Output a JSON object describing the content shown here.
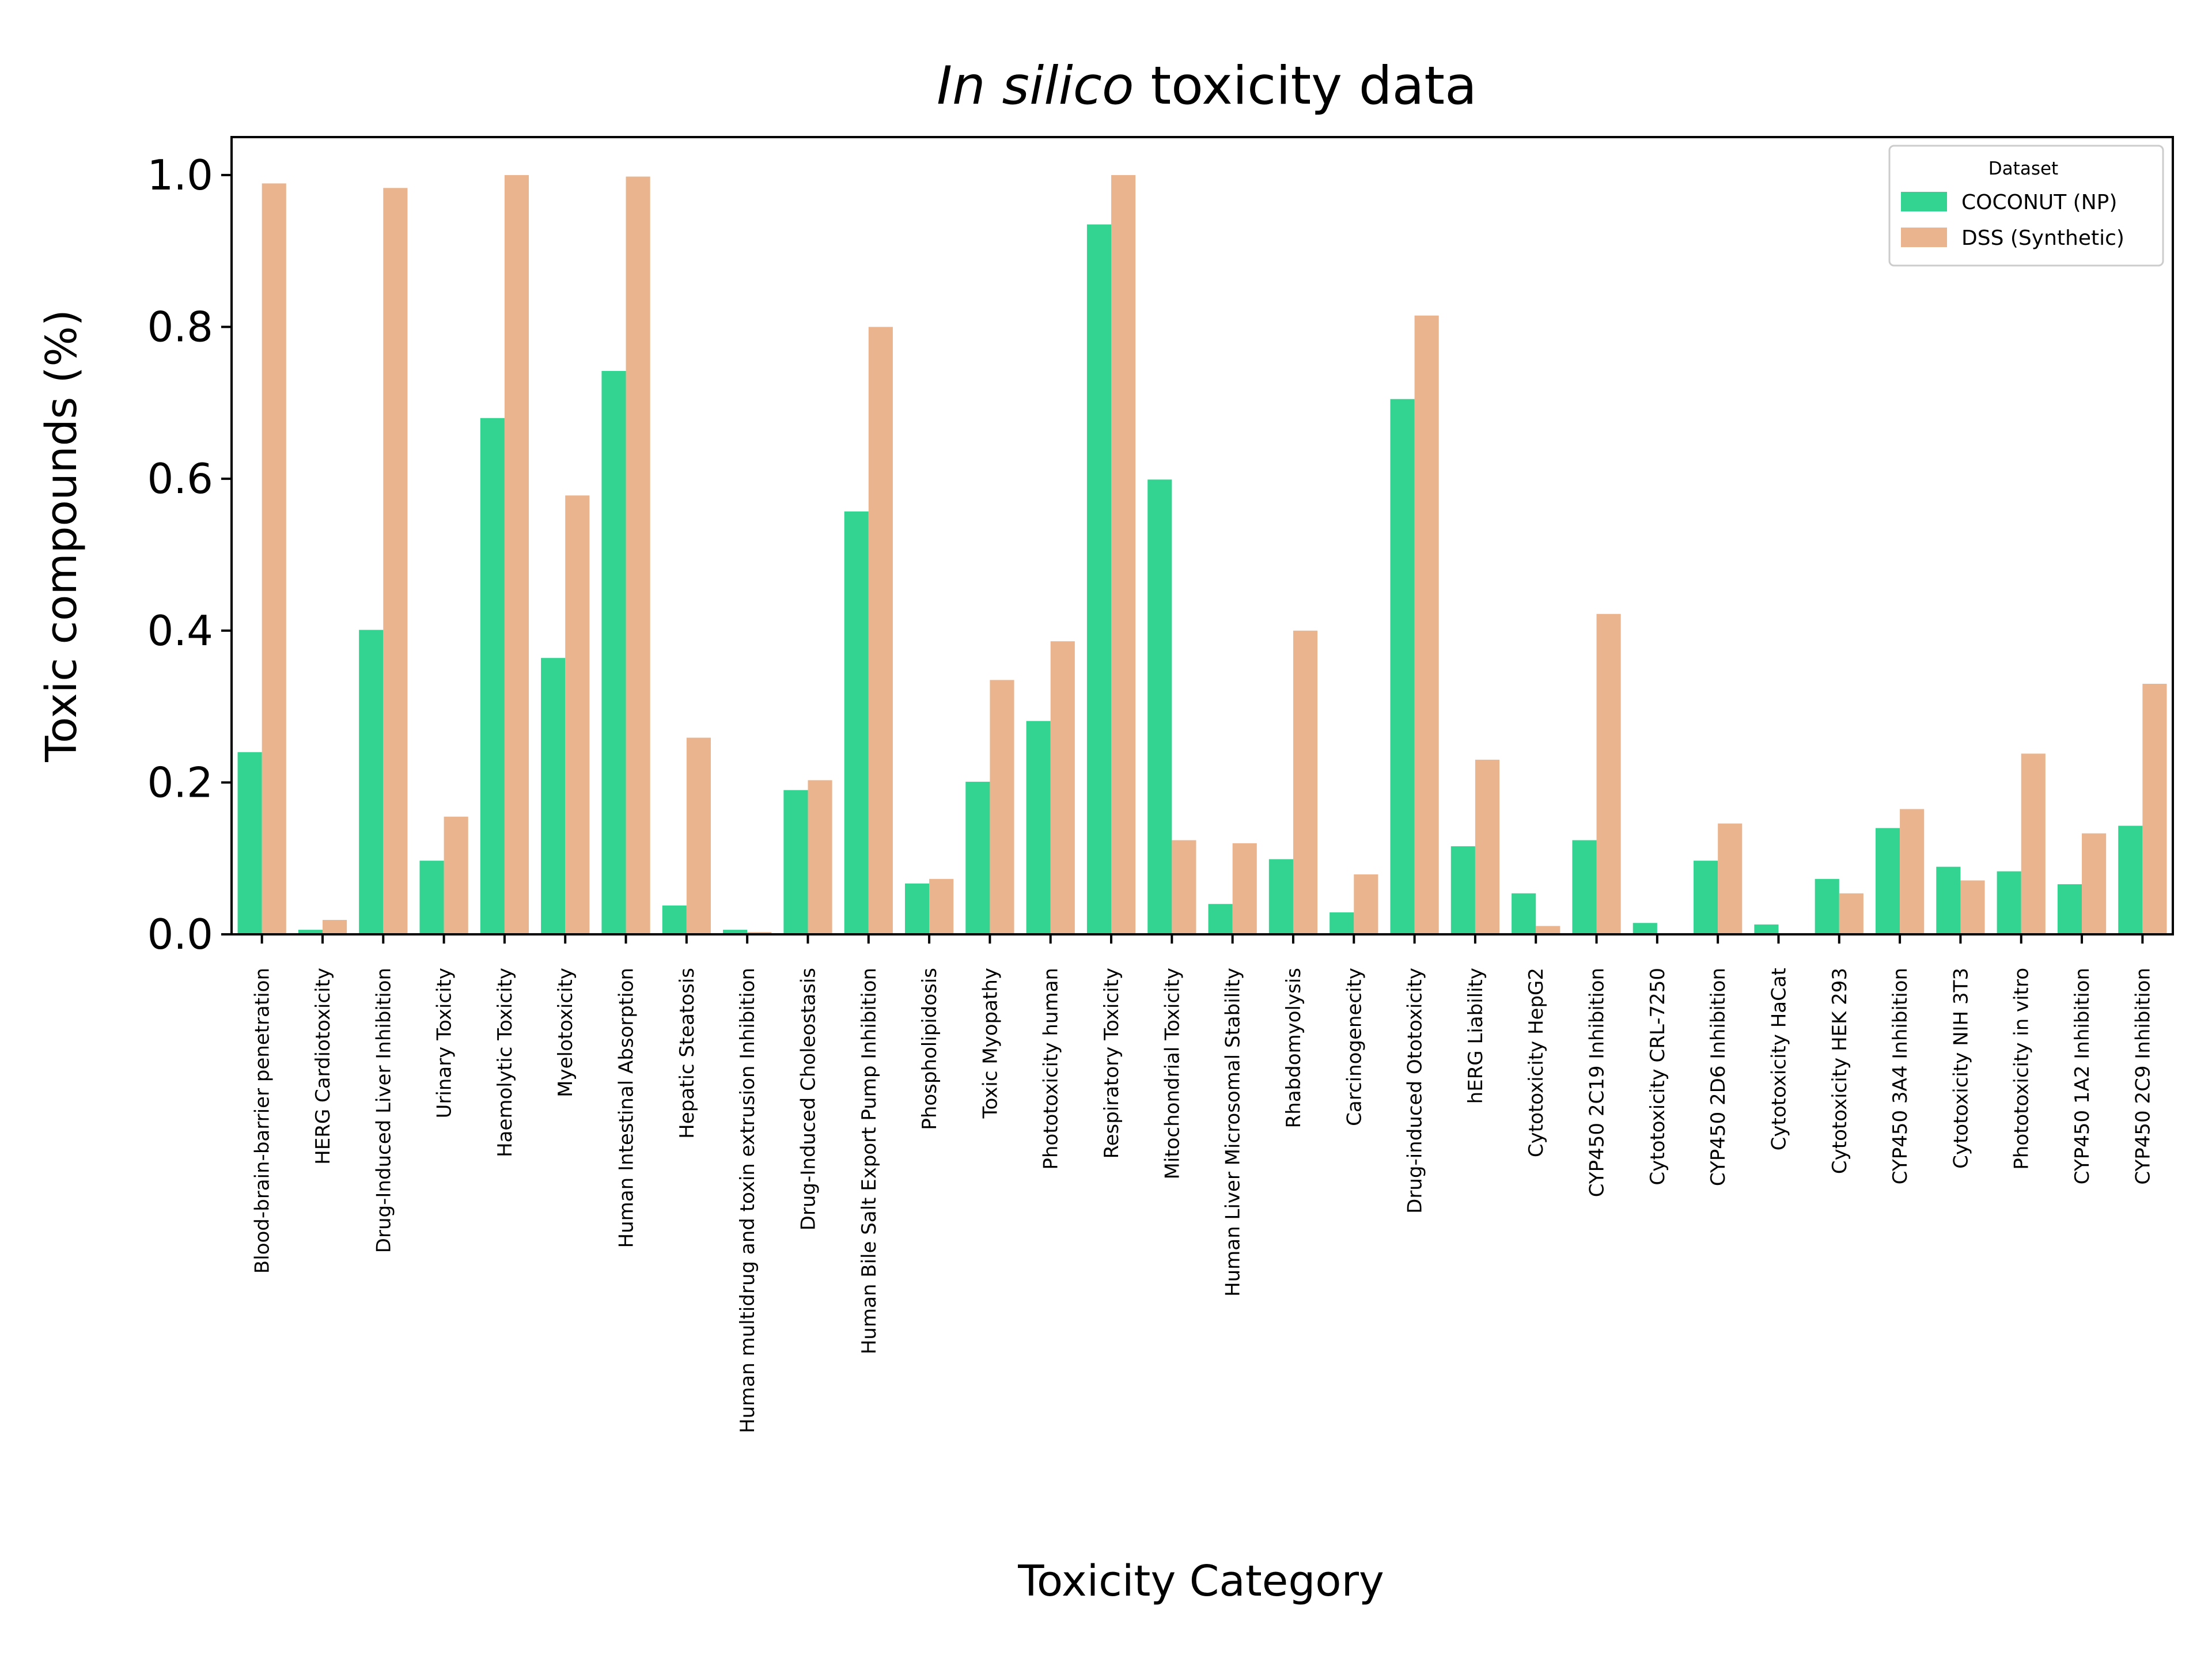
{
  "chart_data": {
    "type": "bar",
    "title": {
      "italic": "In silico",
      "rest": " toxicity data"
    },
    "xlabel": "Toxicity Category",
    "ylabel": "Toxic compounds (%)",
    "ylim": [
      0,
      1.05
    ],
    "yticks": [
      0.0,
      0.2,
      0.4,
      0.6,
      0.8,
      1.0
    ],
    "ytick_labels": [
      "0.0",
      "0.2",
      "0.4",
      "0.6",
      "0.8",
      "1.0"
    ],
    "grid": false,
    "legend": {
      "title": "Dataset",
      "placement": "top-right"
    },
    "categories": [
      "Blood-brain-barrier penetration",
      "HERG Cardiotoxicity",
      "Drug-Induced Liver Inhibition",
      "Urinary Toxicity",
      "Haemolytic Toxicity",
      "Myelotoxicity",
      "Human Intestinal Absorption",
      "Hepatic Steatosis",
      "Human multidrug and toxin extrusion Inhibition",
      "Drug-Induced Choleostasis",
      "Human Bile Salt Export Pump Inhibition",
      "Phospholipidosis",
      "Toxic Myopathy",
      "Phototoxicity human",
      "Respiratory Toxicity",
      "Mitochondrial Toxicity",
      "Human Liver Microsomal Stability",
      "Rhabdomyolysis",
      "Carcinogenecity",
      "Drug-induced Ototoxicity",
      "hERG Liability",
      "Cytotoxicity HepG2",
      "CYP450 2C19 Inhibition",
      "Cytotoxicity CRL-7250",
      "CYP450 2D6 Inhibition",
      "Cytotoxicity HaCat",
      "Cytotoxicity HEK 293",
      "CYP450 3A4 Inhibition",
      "Cytotoxicity NIH 3T3",
      "Phototoxicity in vitro",
      "CYP450 1A2 Inhibition",
      "CYP450 2C9 Inhibition"
    ],
    "series": [
      {
        "name": "COCONUT (NP)",
        "color": "#33d391",
        "values": [
          0.24,
          0.006,
          0.401,
          0.097,
          0.68,
          0.364,
          0.742,
          0.038,
          0.006,
          0.19,
          0.557,
          0.067,
          0.201,
          0.281,
          0.935,
          0.599,
          0.04,
          0.099,
          0.029,
          0.705,
          0.116,
          0.054,
          0.124,
          0.015,
          0.097,
          0.013,
          0.073,
          0.14,
          0.089,
          0.083,
          0.066,
          0.143
        ]
      },
      {
        "name": "DSS (Synthetic)",
        "color": "#e9b48e",
        "values": [
          0.989,
          0.019,
          0.983,
          0.155,
          1.0,
          0.578,
          0.998,
          0.259,
          0.003,
          0.203,
          0.8,
          0.073,
          0.335,
          0.386,
          1.0,
          0.124,
          0.12,
          0.4,
          0.079,
          0.815,
          0.23,
          0.011,
          0.422,
          0.001,
          0.146,
          0.001,
          0.054,
          0.165,
          0.071,
          0.238,
          0.133,
          0.33
        ]
      }
    ]
  }
}
